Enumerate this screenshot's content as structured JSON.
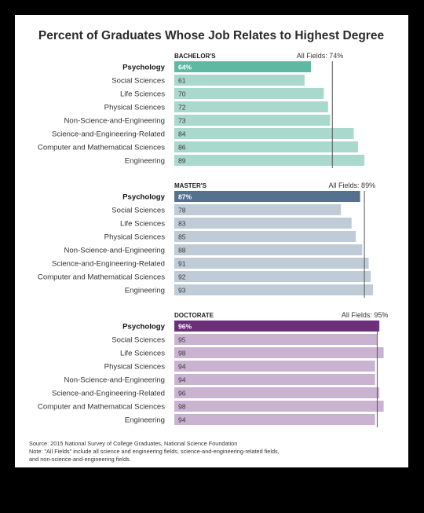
{
  "title": "Percent of Graduates Whose Job Relates to Highest Degree",
  "source_lines": [
    "Source: 2015 National Survey of College Graduates, National Science Foundation",
    "Note: \"All Fields\" include all science and engineering fields, science-and-engineering-related fields,",
    "and non-science-and-engineering fields."
  ],
  "chart_data": [
    {
      "type": "bar",
      "orientation": "horizontal",
      "panel": "BACHELOR'S",
      "reference_label": "All Fields: 74%",
      "reference_value": 74,
      "xlim": [
        0,
        100
      ],
      "categories": [
        "Psychology",
        "Social Sciences",
        "Life Sciences",
        "Physical Sciences",
        "Non-Science-and-Engineering",
        "Science-and-Engineering-Related",
        "Computer and Mathematical Sciences",
        "Engineering"
      ],
      "value_labels": [
        "64%",
        "61",
        "70",
        "72",
        "73",
        "84",
        "86",
        "89"
      ],
      "values": [
        64,
        61,
        70,
        72,
        73,
        84,
        86,
        89
      ],
      "highlight_color": "#5fb8a3",
      "bar_color": "#a9d8cc"
    },
    {
      "type": "bar",
      "orientation": "horizontal",
      "panel": "MASTER'S",
      "reference_label": "All Fields: 89%",
      "reference_value": 89,
      "xlim": [
        0,
        100
      ],
      "categories": [
        "Psychology",
        "Social Sciences",
        "Life Sciences",
        "Physical Sciences",
        "Non-Science-and-Engineering",
        "Science-and-Engineering-Related",
        "Computer and Mathematical Sciences",
        "Engineering"
      ],
      "value_labels": [
        "87%",
        "78",
        "83",
        "85",
        "88",
        "91",
        "92",
        "93"
      ],
      "values": [
        87,
        78,
        83,
        85,
        88,
        91,
        92,
        93
      ],
      "highlight_color": "#56708f",
      "bar_color": "#bfcbd6"
    },
    {
      "type": "bar",
      "orientation": "horizontal",
      "panel": "DOCTORATE",
      "reference_label": "All Fields: 95%",
      "reference_value": 95,
      "xlim": [
        0,
        100
      ],
      "categories": [
        "Psychology",
        "Social Sciences",
        "Life Sciences",
        "Physical Sciences",
        "Non-Science-and-Engineering",
        "Science-and-Engineering-Related",
        "Computer and Mathematical Sciences",
        "Engineering"
      ],
      "value_labels": [
        "96%",
        "95",
        "98",
        "94",
        "94",
        "96",
        "98",
        "94"
      ],
      "values": [
        96,
        95,
        98,
        94,
        94,
        96,
        98,
        94
      ],
      "highlight_color": "#6b2f79",
      "bar_color": "#c9b3d0"
    }
  ]
}
